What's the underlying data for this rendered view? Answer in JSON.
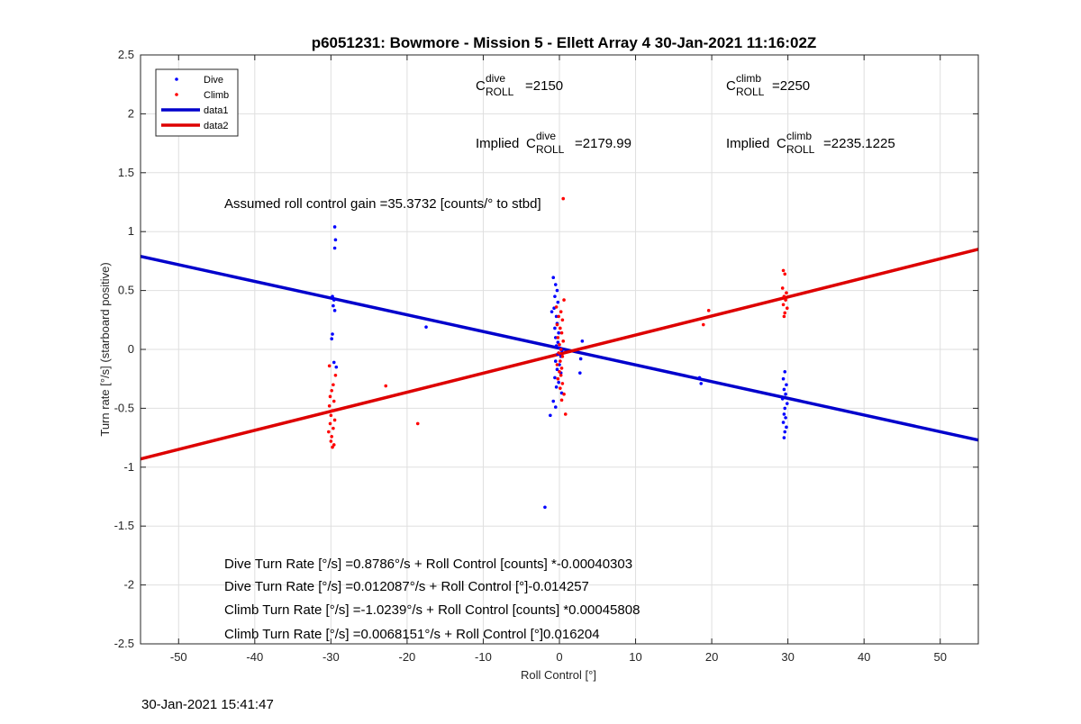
{
  "chart_data": {
    "type": "scatter",
    "title": "p6051231: Bowmore - Mission 5 - Ellett Array 4 30-Jan-2021 11:16:02Z",
    "xlabel": "Roll Control [°]",
    "ylabel": "Turn rate [°/s] (starboard positive)",
    "xlim": [
      -55,
      55
    ],
    "ylim": [
      -2.5,
      2.5
    ],
    "xticks": [
      -50,
      -40,
      -30,
      -20,
      -10,
      0,
      10,
      20,
      30,
      40,
      50
    ],
    "yticks": [
      -2.5,
      -2,
      -1.5,
      -1,
      -0.5,
      0,
      0.5,
      1,
      1.5,
      2,
      2.5
    ],
    "grid": true,
    "legend_position": "top-left",
    "colors": {
      "dive": "#0000ff",
      "climb": "#ff0000",
      "data1": "#0000cc",
      "data2": "#dd0000"
    },
    "legend": [
      "Dive",
      "Climb",
      "data1",
      "data2"
    ],
    "series": [
      {
        "name": "Dive",
        "style": "markers",
        "color": "#0000ff",
        "points": [
          [
            -29.5,
            1.04
          ],
          [
            -29.4,
            0.93
          ],
          [
            -29.5,
            0.86
          ],
          [
            -29.8,
            0.45
          ],
          [
            -29.6,
            0.42
          ],
          [
            -29.7,
            0.37
          ],
          [
            -29.5,
            0.33
          ],
          [
            -29.8,
            0.13
          ],
          [
            -29.9,
            0.09
          ],
          [
            -29.3,
            -0.15
          ],
          [
            -29.6,
            -0.11
          ],
          [
            -17.5,
            0.19
          ],
          [
            -0.8,
            0.61
          ],
          [
            -0.5,
            0.55
          ],
          [
            -0.3,
            0.5
          ],
          [
            -0.6,
            0.45
          ],
          [
            -0.2,
            0.4
          ],
          [
            -0.7,
            0.35
          ],
          [
            -1.0,
            0.32
          ],
          [
            -0.4,
            0.28
          ],
          [
            -0.3,
            0.22
          ],
          [
            -0.6,
            0.18
          ],
          [
            -0.1,
            0.14
          ],
          [
            -0.5,
            0.1
          ],
          [
            -0.2,
            0.06
          ],
          [
            -0.4,
            0.03
          ],
          [
            0.1,
            0.01
          ],
          [
            0.3,
            -0.01
          ],
          [
            -0.2,
            -0.04
          ],
          [
            0.2,
            -0.06
          ],
          [
            -0.5,
            -0.1
          ],
          [
            0.0,
            -0.13
          ],
          [
            -0.3,
            -0.17
          ],
          [
            0.2,
            -0.2
          ],
          [
            -0.6,
            -0.24
          ],
          [
            -0.1,
            -0.28
          ],
          [
            -0.4,
            -0.32
          ],
          [
            0.3,
            -0.37
          ],
          [
            -0.8,
            -0.44
          ],
          [
            -0.5,
            -0.49
          ],
          [
            -1.2,
            -0.56
          ],
          [
            -1.9,
            -1.34
          ],
          [
            3.0,
            0.07
          ],
          [
            2.8,
            -0.08
          ],
          [
            2.7,
            -0.2
          ],
          [
            18.4,
            -0.24
          ],
          [
            18.6,
            -0.29
          ],
          [
            29.6,
            -0.19
          ],
          [
            29.4,
            -0.25
          ],
          [
            29.8,
            -0.3
          ],
          [
            29.5,
            -0.34
          ],
          [
            29.7,
            -0.38
          ],
          [
            29.3,
            -0.42
          ],
          [
            29.9,
            -0.46
          ],
          [
            29.6,
            -0.5
          ],
          [
            29.5,
            -0.55
          ],
          [
            29.7,
            -0.58
          ],
          [
            29.4,
            -0.62
          ],
          [
            29.8,
            -0.66
          ],
          [
            29.6,
            -0.7
          ],
          [
            29.5,
            -0.75
          ]
        ]
      },
      {
        "name": "Climb",
        "style": "markers",
        "color": "#ff0000",
        "points": [
          [
            -29.7,
            -0.3
          ],
          [
            -29.9,
            -0.35
          ],
          [
            -30.1,
            -0.4
          ],
          [
            -29.6,
            -0.44
          ],
          [
            -30.2,
            -0.48
          ],
          [
            -29.8,
            -0.52
          ],
          [
            -30.0,
            -0.56
          ],
          [
            -29.5,
            -0.6
          ],
          [
            -30.1,
            -0.63
          ],
          [
            -29.7,
            -0.67
          ],
          [
            -30.3,
            -0.7
          ],
          [
            -29.9,
            -0.74
          ],
          [
            -30.0,
            -0.78
          ],
          [
            -29.6,
            -0.81
          ],
          [
            -29.8,
            -0.83
          ],
          [
            -30.2,
            -0.14
          ],
          [
            -29.4,
            -0.22
          ],
          [
            -22.8,
            -0.31
          ],
          [
            -18.6,
            -0.63
          ],
          [
            -0.4,
            0.36
          ],
          [
            0.2,
            0.32
          ],
          [
            -0.1,
            0.28
          ],
          [
            0.4,
            0.25
          ],
          [
            -0.3,
            0.21
          ],
          [
            0.1,
            0.18
          ],
          [
            0.3,
            0.14
          ],
          [
            -0.2,
            0.1
          ],
          [
            0.5,
            0.07
          ],
          [
            0.0,
            0.04
          ],
          [
            0.2,
            0.0
          ],
          [
            -0.1,
            -0.03
          ],
          [
            0.4,
            -0.06
          ],
          [
            0.1,
            -0.1
          ],
          [
            -0.3,
            -0.13
          ],
          [
            0.3,
            -0.16
          ],
          [
            0.0,
            -0.19
          ],
          [
            0.2,
            -0.22
          ],
          [
            -0.2,
            -0.25
          ],
          [
            0.4,
            -0.29
          ],
          [
            0.1,
            -0.33
          ],
          [
            0.6,
            -0.38
          ],
          [
            0.8,
            -0.55
          ],
          [
            0.3,
            -0.43
          ],
          [
            0.5,
            1.28
          ],
          [
            0.6,
            0.42
          ],
          [
            18.9,
            0.21
          ],
          [
            19.6,
            0.33
          ],
          [
            29.4,
            0.67
          ],
          [
            29.6,
            0.64
          ],
          [
            29.3,
            0.52
          ],
          [
            29.8,
            0.48
          ],
          [
            29.5,
            0.45
          ],
          [
            29.7,
            0.42
          ],
          [
            29.4,
            0.38
          ],
          [
            29.9,
            0.35
          ],
          [
            29.6,
            0.31
          ],
          [
            29.5,
            0.28
          ]
        ]
      },
      {
        "name": "data1",
        "style": "line",
        "color": "#0000cc",
        "points": [
          [
            -55,
            0.79
          ],
          [
            55,
            -0.77
          ]
        ]
      },
      {
        "name": "data2",
        "style": "line",
        "color": "#dd0000",
        "points": [
          [
            -55,
            -0.93
          ],
          [
            55,
            0.85
          ]
        ]
      }
    ],
    "annotations": {
      "c_roll_dive": {
        "base": "C",
        "sup": "dive",
        "sub": "ROLL",
        "value": "=2150"
      },
      "c_roll_climb": {
        "base": "C",
        "sup": "climb",
        "sub": "ROLL",
        "value": "=2250"
      },
      "implied_dive": {
        "prefix": "Implied ",
        "base": "C",
        "sup": "dive",
        "sub": "ROLL",
        "value": "=2179.99"
      },
      "implied_climb": {
        "prefix": "Implied ",
        "base": "C",
        "sup": "climb",
        "sub": "ROLL",
        "value": "=2235.1225"
      },
      "gain": "Assumed roll control gain =35.3732 [counts/° to stbd]",
      "eq1": "Dive Turn Rate [°/s] =0.8786°/s + Roll Control [counts] *-0.00040303",
      "eq2": "Dive Turn Rate [°/s] =0.012087°/s + Roll Control [°]-0.014257",
      "eq3": "Climb Turn Rate [°/s] =-1.0239°/s + Roll Control [counts] *0.00045808",
      "eq4": "Climb Turn Rate [°/s] =0.0068151°/s + Roll Control [°]0.016204"
    }
  },
  "footer_timestamp": "30-Jan-2021 15:41:47"
}
